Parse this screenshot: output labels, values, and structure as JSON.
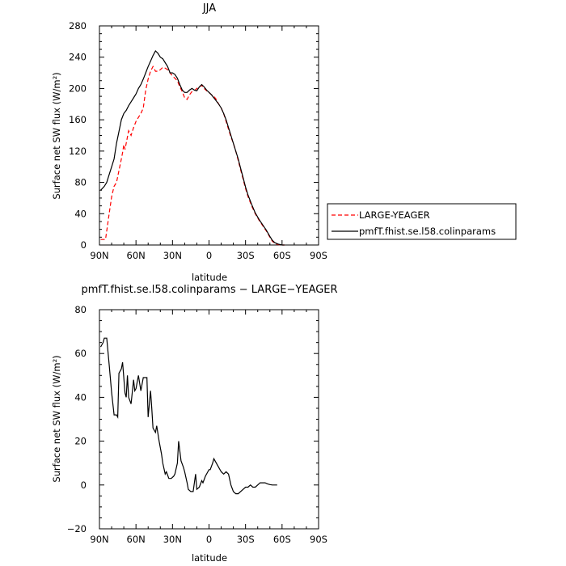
{
  "chart_data": [
    {
      "type": "line",
      "title": "JJA",
      "xlabel": "latitude",
      "ylabel": "Surface net SW flux (W/m²)",
      "xlim": [
        90,
        -90
      ],
      "ylim": [
        0,
        280
      ],
      "x_ticks": [
        90,
        60,
        30,
        0,
        -30,
        -60,
        -90
      ],
      "x_tick_labels": [
        "90N",
        "60N",
        "30N",
        "0",
        "30S",
        "60S",
        "90S"
      ],
      "y_ticks": [
        0,
        40,
        80,
        120,
        160,
        200,
        240,
        280
      ],
      "y_tick_labels": [
        "0",
        "40",
        "80",
        "120",
        "160",
        "200",
        "240",
        "280"
      ],
      "legend_position": "right",
      "series": [
        {
          "name": "LARGE-YEAGER",
          "color": "#ff0000",
          "dash": "dashed",
          "points": [
            [
              89,
              7
            ],
            [
              85,
              7
            ],
            [
              82,
              40
            ],
            [
              80,
              62
            ],
            [
              78,
              75
            ],
            [
              76,
              80
            ],
            [
              74,
              95
            ],
            [
              72,
              110
            ],
            [
              71,
              118
            ],
            [
              70,
              128
            ],
            [
              69,
              122
            ],
            [
              67,
              138
            ],
            [
              66,
              146
            ],
            [
              64,
              140
            ],
            [
              62,
              150
            ],
            [
              60,
              158
            ],
            [
              58,
              163
            ],
            [
              56,
              168
            ],
            [
              54,
              175
            ],
            [
              52,
              198
            ],
            [
              50,
              212
            ],
            [
              48,
              222
            ],
            [
              46,
              228
            ],
            [
              44,
              222
            ],
            [
              42,
              222
            ],
            [
              40,
              224
            ],
            [
              38,
              227
            ],
            [
              36,
              226
            ],
            [
              34,
              224
            ],
            [
              32,
              220
            ],
            [
              30,
              216
            ],
            [
              28,
              213
            ],
            [
              26,
              210
            ],
            [
              24,
              202
            ],
            [
              22,
              196
            ],
            [
              20,
              188
            ],
            [
              18,
              186
            ],
            [
              16,
              192
            ],
            [
              14,
              196
            ],
            [
              12,
              197
            ],
            [
              10,
              200
            ],
            [
              8,
              202
            ],
            [
              6,
              204
            ],
            [
              4,
              200
            ],
            [
              2,
              197
            ],
            [
              0,
              195
            ],
            [
              -2,
              192
            ],
            [
              -4,
              190
            ],
            [
              -6,
              186
            ],
            [
              -8,
              180
            ],
            [
              -10,
              175
            ],
            [
              -12,
              168
            ],
            [
              -14,
              158
            ],
            [
              -16,
              148
            ],
            [
              -18,
              138
            ],
            [
              -20,
              130
            ],
            [
              -22,
              120
            ],
            [
              -24,
              108
            ],
            [
              -26,
              96
            ],
            [
              -28,
              84
            ],
            [
              -30,
              72
            ],
            [
              -32,
              62
            ],
            [
              -35,
              50
            ],
            [
              -38,
              40
            ],
            [
              -41,
              32
            ],
            [
              -44,
              25
            ],
            [
              -47,
              18
            ],
            [
              -50,
              10
            ],
            [
              -52,
              5
            ],
            [
              -54,
              2
            ],
            [
              -57,
              0.5
            ],
            [
              -60,
              0
            ],
            [
              -62,
              0
            ]
          ]
        },
        {
          "name": "pmfT.fhist.se.l58.colinparams",
          "color": "#000000",
          "dash": "solid",
          "points": [
            [
              89,
              70
            ],
            [
              86,
              75
            ],
            [
              84,
              80
            ],
            [
              82,
              90
            ],
            [
              80,
              100
            ],
            [
              78,
              110
            ],
            [
              76,
              130
            ],
            [
              74,
              145
            ],
            [
              72,
              160
            ],
            [
              70,
              168
            ],
            [
              68,
              172
            ],
            [
              66,
              178
            ],
            [
              64,
              183
            ],
            [
              62,
              188
            ],
            [
              60,
              193
            ],
            [
              58,
              200
            ],
            [
              56,
              205
            ],
            [
              54,
              212
            ],
            [
              52,
              220
            ],
            [
              50,
              228
            ],
            [
              48,
              235
            ],
            [
              46,
              242
            ],
            [
              44,
              248
            ],
            [
              42,
              245
            ],
            [
              40,
              240
            ],
            [
              38,
              238
            ],
            [
              36,
              233
            ],
            [
              34,
              228
            ],
            [
              32,
              220
            ],
            [
              30,
              220
            ],
            [
              28,
              218
            ],
            [
              26,
              213
            ],
            [
              24,
              205
            ],
            [
              22,
              198
            ],
            [
              20,
              195
            ],
            [
              18,
              195
            ],
            [
              16,
              198
            ],
            [
              14,
              200
            ],
            [
              12,
              198
            ],
            [
              10,
              197
            ],
            [
              8,
              202
            ],
            [
              6,
              205
            ],
            [
              4,
              202
            ],
            [
              2,
              198
            ],
            [
              0,
              195
            ],
            [
              -2,
              192
            ],
            [
              -4,
              188
            ],
            [
              -6,
              184
            ],
            [
              -8,
              180
            ],
            [
              -10,
              175
            ],
            [
              -12,
              168
            ],
            [
              -14,
              160
            ],
            [
              -16,
              150
            ],
            [
              -18,
              140
            ],
            [
              -20,
              130
            ],
            [
              -22,
              120
            ],
            [
              -24,
              110
            ],
            [
              -26,
              98
            ],
            [
              -28,
              86
            ],
            [
              -30,
              74
            ],
            [
              -32,
              64
            ],
            [
              -35,
              52
            ],
            [
              -38,
              41
            ],
            [
              -41,
              33
            ],
            [
              -44,
              26
            ],
            [
              -47,
              19
            ],
            [
              -50,
              11
            ],
            [
              -52,
              6
            ],
            [
              -54,
              3
            ],
            [
              -57,
              1
            ],
            [
              -60,
              0
            ],
            [
              -62,
              0
            ]
          ]
        }
      ]
    },
    {
      "type": "line",
      "title": "pmfT.fhist.se.l58.colinparams − LARGE−YEAGER",
      "xlabel": "latitude",
      "ylabel": "Surface net SW flux (W/m²)",
      "xlim": [
        90,
        -90
      ],
      "ylim": [
        -20,
        80
      ],
      "x_ticks": [
        90,
        60,
        30,
        0,
        -30,
        -60,
        -90
      ],
      "x_tick_labels": [
        "90N",
        "60N",
        "30N",
        "0",
        "30S",
        "60S",
        "90S"
      ],
      "y_ticks": [
        -20,
        0,
        20,
        40,
        60,
        80
      ],
      "y_tick_labels": [
        "−20",
        "0",
        "20",
        "40",
        "60",
        "80"
      ],
      "series": [
        {
          "color": "#000000",
          "dash": "solid",
          "points": [
            [
              89,
              63
            ],
            [
              87,
              65
            ],
            [
              86,
              67
            ],
            [
              84,
              67
            ],
            [
              82,
              55
            ],
            [
              80,
              42
            ],
            [
              78,
              32
            ],
            [
              76,
              32
            ],
            [
              75,
              31
            ],
            [
              74,
              51
            ],
            [
              72,
              53
            ],
            [
              71,
              56
            ],
            [
              69,
              42
            ],
            [
              68,
              40
            ],
            [
              67,
              50
            ],
            [
              66,
              40
            ],
            [
              64,
              37
            ],
            [
              62,
              48
            ],
            [
              61,
              43
            ],
            [
              60,
              44
            ],
            [
              58,
              50
            ],
            [
              56,
              43
            ],
            [
              54,
              49
            ],
            [
              52,
              49
            ],
            [
              51,
              49
            ],
            [
              50,
              31
            ],
            [
              48,
              43
            ],
            [
              47,
              35
            ],
            [
              46,
              26
            ],
            [
              44,
              24
            ],
            [
              43,
              27
            ],
            [
              41,
              20
            ],
            [
              39,
              14
            ],
            [
              38,
              10
            ],
            [
              36,
              5
            ],
            [
              35,
              6
            ],
            [
              33,
              3
            ],
            [
              31,
              3
            ],
            [
              29,
              4
            ],
            [
              28,
              5
            ],
            [
              26,
              10
            ],
            [
              25,
              20
            ],
            [
              23,
              11
            ],
            [
              21,
              8
            ],
            [
              20,
              6
            ],
            [
              18,
              1
            ],
            [
              17,
              -2
            ],
            [
              15,
              -3
            ],
            [
              13,
              -3
            ],
            [
              11,
              5
            ],
            [
              10,
              -2
            ],
            [
              8,
              -1
            ],
            [
              6,
              2
            ],
            [
              5,
              1
            ],
            [
              3,
              4
            ],
            [
              1,
              6
            ],
            [
              0,
              7
            ],
            [
              -1,
              7
            ],
            [
              -3,
              10
            ],
            [
              -4,
              12
            ],
            [
              -6,
              10
            ],
            [
              -8,
              8
            ],
            [
              -10,
              6
            ],
            [
              -12,
              5
            ],
            [
              -14,
              6
            ],
            [
              -16,
              5
            ],
            [
              -18,
              0
            ],
            [
              -20,
              -3
            ],
            [
              -22,
              -4
            ],
            [
              -24,
              -4
            ],
            [
              -26,
              -3
            ],
            [
              -28,
              -2
            ],
            [
              -30,
              -1
            ],
            [
              -32,
              -1
            ],
            [
              -34,
              0
            ],
            [
              -36,
              -1
            ],
            [
              -38,
              -1
            ],
            [
              -40,
              0
            ],
            [
              -42,
              1
            ],
            [
              -44,
              1
            ],
            [
              -46,
              1
            ],
            [
              -48,
              0.5
            ],
            [
              -50,
              0.2
            ],
            [
              -52,
              0
            ],
            [
              -54,
              0
            ],
            [
              -56,
              0
            ]
          ]
        }
      ]
    }
  ]
}
